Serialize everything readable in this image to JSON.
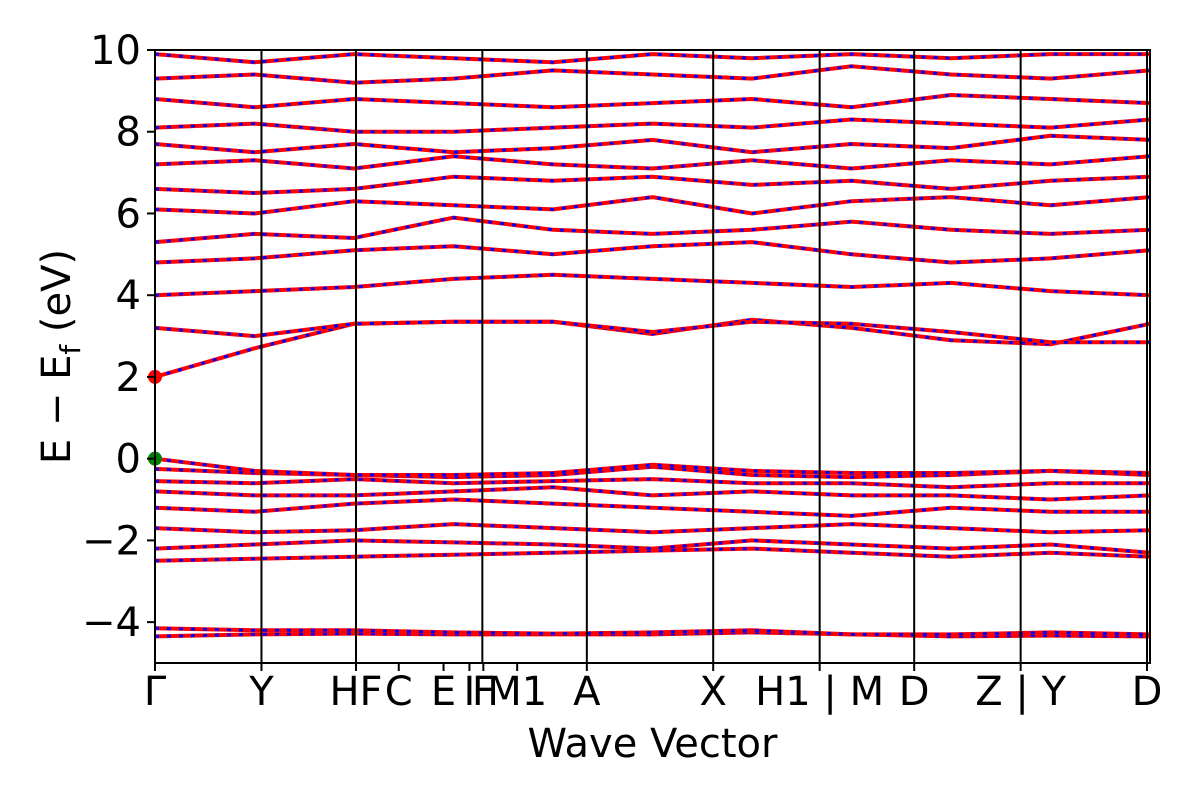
{
  "chart_data": {
    "type": "line",
    "title": "",
    "xlabel": "Wave Vector",
    "ylabel": "E − E_f (eV)",
    "ylabel_main": "E − E",
    "ylabel_sub": "f",
    "ylabel_unit": " (eV)",
    "ylim": [
      -5,
      10
    ],
    "yticks": [
      -4,
      -2,
      0,
      2,
      4,
      6,
      8,
      10
    ],
    "ytick_labels": [
      "−4",
      "−2",
      "0",
      "2",
      "4",
      "6",
      "8",
      "10"
    ],
    "grid": false,
    "legend": "none",
    "kpoints": [
      {
        "label": "Γ",
        "x": 0.0
      },
      {
        "label": "Y",
        "x": 0.107
      },
      {
        "label": "HF",
        "x": 0.202
      },
      {
        "label": "C",
        "x": 0.245
      },
      {
        "label": "E",
        "x": 0.29
      },
      {
        "label": "I",
        "x": 0.316
      },
      {
        "label": "F",
        "x": 0.33
      },
      {
        "label": "M1",
        "x": 0.364
      },
      {
        "label": "A",
        "x": 0.434
      },
      {
        "label": "X",
        "x": 0.561
      },
      {
        "label": "H1 | M",
        "x": 0.668
      },
      {
        "label": "D",
        "x": 0.763
      },
      {
        "label": "Z | Y",
        "x": 0.87
      },
      {
        "label": "D",
        "x": 0.997
      }
    ],
    "segment_boundaries": [
      0.0,
      0.107,
      0.202,
      0.329,
      0.434,
      0.561,
      0.668,
      0.763,
      0.87,
      0.997
    ],
    "series_colors": {
      "spin_up": "#ff0000",
      "spin_down": "#0000ff"
    },
    "series": [
      {
        "values": [
          -4.35,
          -4.3,
          -4.28,
          -4.3,
          -4.3,
          -4.3,
          -4.25,
          -4.3,
          -4.35,
          -4.33,
          -4.35
        ]
      },
      {
        "values": [
          -4.15,
          -4.2,
          -4.2,
          -4.25,
          -4.28,
          -4.25,
          -4.2,
          -4.3,
          -4.3,
          -4.25,
          -4.3
        ]
      },
      {
        "values": [
          -2.5,
          -2.45,
          -2.4,
          -2.35,
          -2.3,
          -2.25,
          -2.2,
          -2.3,
          -2.4,
          -2.3,
          -2.4
        ]
      },
      {
        "values": [
          -2.2,
          -2.1,
          -2.0,
          -2.05,
          -2.1,
          -2.2,
          -2.0,
          -2.1,
          -2.2,
          -2.1,
          -2.3
        ]
      },
      {
        "values": [
          -1.7,
          -1.8,
          -1.75,
          -1.6,
          -1.7,
          -1.8,
          -1.7,
          -1.6,
          -1.7,
          -1.8,
          -1.75
        ]
      },
      {
        "values": [
          -1.2,
          -1.3,
          -1.1,
          -1.0,
          -1.1,
          -1.2,
          -1.3,
          -1.4,
          -1.2,
          -1.3,
          -1.3
        ]
      },
      {
        "values": [
          -0.8,
          -0.9,
          -0.9,
          -0.8,
          -0.7,
          -0.9,
          -0.8,
          -0.9,
          -0.9,
          -1.0,
          -0.9
        ]
      },
      {
        "values": [
          -0.55,
          -0.6,
          -0.5,
          -0.6,
          -0.55,
          -0.5,
          -0.6,
          -0.6,
          -0.7,
          -0.6,
          -0.6
        ]
      },
      {
        "values": [
          -0.25,
          -0.35,
          -0.4,
          -0.45,
          -0.4,
          -0.2,
          -0.4,
          -0.45,
          -0.4,
          -0.3,
          -0.4
        ]
      },
      {
        "values": [
          0.0,
          -0.3,
          -0.4,
          -0.4,
          -0.35,
          -0.15,
          -0.3,
          -0.35,
          -0.35,
          -0.3,
          -0.35
        ]
      },
      {
        "values": [
          2.0,
          2.7,
          3.3,
          3.35,
          3.35,
          3.05,
          3.4,
          3.2,
          2.9,
          2.8,
          3.3
        ]
      },
      {
        "values": [
          3.2,
          3.0,
          3.3,
          3.35,
          3.35,
          3.1,
          3.35,
          3.3,
          3.1,
          2.85,
          2.85
        ]
      },
      {
        "values": [
          4.0,
          4.1,
          4.2,
          4.4,
          4.5,
          4.4,
          4.3,
          4.2,
          4.3,
          4.1,
          4.0
        ]
      },
      {
        "values": [
          4.8,
          4.9,
          5.1,
          5.2,
          5.0,
          5.2,
          5.3,
          5.0,
          4.8,
          4.9,
          5.1
        ]
      },
      {
        "values": [
          5.3,
          5.5,
          5.4,
          5.9,
          5.6,
          5.5,
          5.6,
          5.8,
          5.6,
          5.5,
          5.6
        ]
      },
      {
        "values": [
          6.1,
          6.0,
          6.3,
          6.2,
          6.1,
          6.4,
          6.0,
          6.3,
          6.4,
          6.2,
          6.4
        ]
      },
      {
        "values": [
          6.6,
          6.5,
          6.6,
          6.9,
          6.8,
          6.9,
          6.7,
          6.8,
          6.6,
          6.8,
          6.9
        ]
      },
      {
        "values": [
          7.2,
          7.3,
          7.1,
          7.4,
          7.2,
          7.1,
          7.3,
          7.1,
          7.3,
          7.2,
          7.4
        ]
      },
      {
        "values": [
          7.7,
          7.5,
          7.7,
          7.5,
          7.6,
          7.8,
          7.5,
          7.7,
          7.6,
          7.9,
          7.8
        ]
      },
      {
        "values": [
          8.1,
          8.2,
          8.0,
          8.0,
          8.1,
          8.2,
          8.1,
          8.3,
          8.2,
          8.1,
          8.3
        ]
      },
      {
        "values": [
          8.8,
          8.6,
          8.8,
          8.7,
          8.6,
          8.7,
          8.8,
          8.6,
          8.9,
          8.8,
          8.7
        ]
      },
      {
        "values": [
          9.3,
          9.4,
          9.2,
          9.3,
          9.5,
          9.4,
          9.3,
          9.6,
          9.4,
          9.3,
          9.5
        ]
      },
      {
        "values": [
          9.9,
          9.7,
          9.9,
          9.8,
          9.7,
          9.9,
          9.8,
          9.9,
          9.8,
          9.9,
          9.9
        ]
      }
    ],
    "markers": [
      {
        "name": "cbm",
        "x": 0.0,
        "y": 2.0,
        "color": "#ff0000"
      },
      {
        "name": "vbm",
        "x": 0.0,
        "y": 0.0,
        "color": "#008000"
      }
    ]
  }
}
